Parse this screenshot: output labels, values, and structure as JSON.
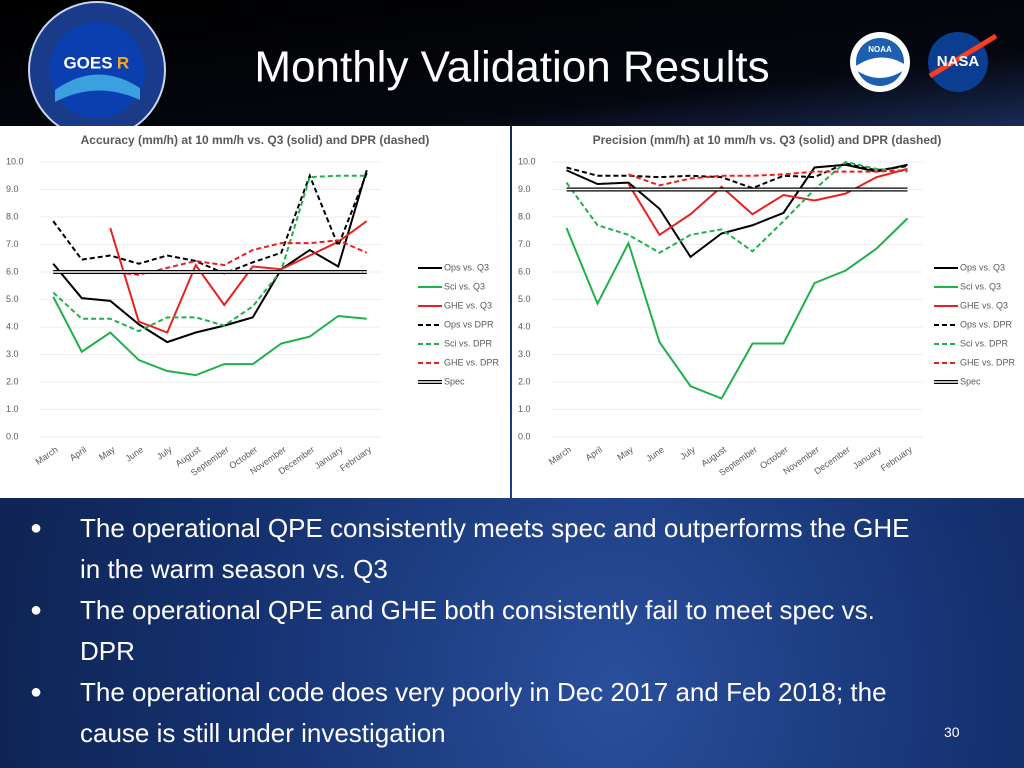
{
  "slide_title": "Monthly Validation Results",
  "logos": {
    "goes": "GOES",
    "goes_r": "R",
    "noaa": "NOAA",
    "nasa": "NASA"
  },
  "chart_data": [
    {
      "type": "line",
      "title": "Accuracy (mm/h) at 10 mm/h vs. Q3 (solid) and DPR (dashed)",
      "categories": [
        "March",
        "April",
        "May",
        "June",
        "July",
        "August",
        "September",
        "October",
        "November",
        "December",
        "January",
        "February"
      ],
      "ylim": [
        0,
        10
      ],
      "yticks": [
        {
          "value": 0,
          "label": "0.0"
        },
        {
          "value": 1,
          "label": "1.0"
        },
        {
          "value": 2,
          "label": "2.0"
        },
        {
          "value": 3,
          "label": "3.0"
        },
        {
          "value": 4,
          "label": "4.0"
        },
        {
          "value": 5,
          "label": "5.0"
        },
        {
          "value": 6,
          "label": "6.0"
        },
        {
          "value": 7,
          "label": "7.0"
        },
        {
          "value": 8,
          "label": "8.0"
        },
        {
          "value": 9,
          "label": "9.0"
        },
        {
          "value": 10,
          "label": "10.0"
        }
      ],
      "grid": true,
      "legend": "right",
      "series": [
        {
          "name": "Ops vs. Q3",
          "color": "#000000",
          "dashed": false,
          "values": [
            6.3,
            5.05,
            4.95,
            4.1,
            3.45,
            3.8,
            4.05,
            4.35,
            6.1,
            6.8,
            6.2,
            9.7
          ]
        },
        {
          "name": "Sci vs. Q3",
          "color": "#22b04b",
          "dashed": false,
          "values": [
            5.1,
            3.1,
            3.8,
            2.8,
            2.4,
            2.25,
            2.65,
            2.65,
            3.4,
            3.65,
            4.4,
            4.3
          ]
        },
        {
          "name": "GHE vs. Q3",
          "color": "#e8201f",
          "dashed": false,
          "values": [
            null,
            null,
            7.6,
            4.2,
            3.8,
            6.25,
            4.8,
            6.2,
            6.1,
            6.6,
            7.1,
            7.85
          ]
        },
        {
          "name": "Ops vs DPR",
          "color": "#000000",
          "dashed": true,
          "values": [
            7.85,
            6.45,
            6.6,
            6.3,
            6.6,
            6.4,
            5.95,
            6.35,
            6.7,
            9.5,
            6.95,
            9.6
          ]
        },
        {
          "name": "Sci vs. DPR",
          "color": "#22b04b",
          "dashed": true,
          "values": [
            5.25,
            4.3,
            4.3,
            3.85,
            4.35,
            4.35,
            4.05,
            4.75,
            6.05,
            9.45,
            9.5,
            9.5
          ]
        },
        {
          "name": "GHE vs. DPR",
          "color": "#e8201f",
          "dashed": true,
          "values": [
            null,
            null,
            6.0,
            5.9,
            6.15,
            6.4,
            6.25,
            6.8,
            7.05,
            7.05,
            7.15,
            6.7
          ]
        },
        {
          "name": "Spec",
          "color": "#000000",
          "dashed": false,
          "double": true,
          "values": [
            6,
            6,
            6,
            6,
            6,
            6,
            6,
            6,
            6,
            6,
            6,
            6
          ]
        }
      ]
    },
    {
      "type": "line",
      "title": "Precision (mm/h) at 10 mm/h vs. Q3 (solid) and DPR (dashed)",
      "categories": [
        "March",
        "April",
        "May",
        "June",
        "July",
        "August",
        "September",
        "October",
        "November",
        "December",
        "January",
        "February"
      ],
      "ylim": [
        0,
        10
      ],
      "yticks": [
        {
          "value": 0,
          "label": "0.0"
        },
        {
          "value": 1,
          "label": "1.0"
        },
        {
          "value": 2,
          "label": "2.0"
        },
        {
          "value": 3,
          "label": "3.0"
        },
        {
          "value": 4,
          "label": "4.0"
        },
        {
          "value": 5,
          "label": "5.0"
        },
        {
          "value": 6,
          "label": "6.0"
        },
        {
          "value": 7,
          "label": "7.0"
        },
        {
          "value": 8,
          "label": "8.0"
        },
        {
          "value": 9,
          "label": "9.0"
        },
        {
          "value": 10,
          "label": "10.0"
        }
      ],
      "grid": true,
      "legend": "right",
      "series": [
        {
          "name": "Ops vs. Q3",
          "color": "#000000",
          "dashed": false,
          "values": [
            9.7,
            9.2,
            9.25,
            8.3,
            6.55,
            7.4,
            7.7,
            8.15,
            9.8,
            9.9,
            9.65,
            9.9
          ]
        },
        {
          "name": "Sci vs. Q3",
          "color": "#22b04b",
          "dashed": false,
          "values": [
            7.6,
            4.85,
            7.05,
            3.45,
            1.85,
            1.4,
            3.4,
            3.4,
            5.6,
            6.05,
            6.85,
            7.95
          ]
        },
        {
          "name": "GHE vs. Q3",
          "color": "#e8201f",
          "dashed": false,
          "values": [
            null,
            null,
            9.2,
            7.35,
            8.1,
            9.1,
            8.1,
            8.8,
            8.6,
            8.85,
            9.45,
            9.75
          ]
        },
        {
          "name": "Ops vs. DPR",
          "color": "#000000",
          "dashed": true,
          "values": [
            9.8,
            9.5,
            9.5,
            9.45,
            9.5,
            9.45,
            9.05,
            9.5,
            9.45,
            9.95,
            9.7,
            9.85
          ]
        },
        {
          "name": "Sci vs. DPR",
          "color": "#22b04b",
          "dashed": true,
          "values": [
            9.25,
            7.7,
            7.35,
            6.7,
            7.35,
            7.55,
            6.75,
            7.85,
            9.0,
            10.0,
            9.75,
            9.65
          ]
        },
        {
          "name": "GHE vs. DPR",
          "color": "#e8201f",
          "dashed": true,
          "values": [
            null,
            null,
            9.55,
            9.15,
            9.4,
            9.5,
            9.5,
            9.55,
            9.65,
            9.65,
            9.65,
            9.7
          ]
        },
        {
          "name": "Spec",
          "color": "#000000",
          "dashed": false,
          "double": true,
          "values": [
            9,
            9,
            9,
            9,
            9,
            9,
            9,
            9,
            9,
            9,
            9,
            9
          ]
        }
      ]
    }
  ],
  "bullets": [
    "The operational QPE consistently meets spec and outperforms the GHE in the warm season vs. Q3",
    "The operational QPE and GHE both consistently fail to meet spec vs. DPR",
    "The operational code does very poorly in Dec 2017 and Feb 2018; the cause is still under investigation"
  ],
  "page_number": "30"
}
